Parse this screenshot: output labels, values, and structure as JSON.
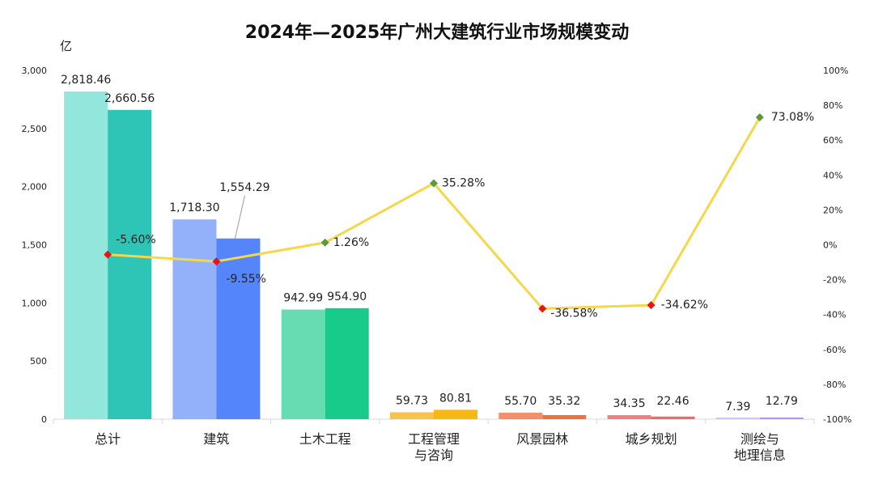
{
  "chart_data": {
    "type": "bar",
    "title": "2024年—2025年广州大建筑行业市场规模变动",
    "ylabel": "亿",
    "ylim": [
      0,
      3000
    ],
    "y2lim": [
      -100,
      100
    ],
    "yticks": [
      "0",
      "500",
      "1,000",
      "1,500",
      "2,000",
      "2,500",
      "3,000"
    ],
    "y2ticks": [
      "-100%",
      "-80%",
      "-60%",
      "-40%",
      "-20%",
      "0%",
      "20%",
      "40%",
      "60%",
      "80%",
      "100%"
    ],
    "categories": [
      [
        "总计"
      ],
      [
        "建筑"
      ],
      [
        "土木工程"
      ],
      [
        "工程管理",
        "与咨询"
      ],
      [
        "风景园林"
      ],
      [
        "城乡规划"
      ],
      [
        "测绘与",
        "地理信息"
      ]
    ],
    "series": [
      {
        "values": [
          2818.46,
          1718.3,
          942.99,
          59.73,
          55.7,
          34.35,
          7.39
        ],
        "labels": [
          "2,818.46",
          "1,718.30",
          "942.99",
          "59.73",
          "55.70",
          "34.35",
          "7.39"
        ],
        "colors": [
          "#93e6dc",
          "#93b1fb",
          "#67dcb2",
          "#f9c24f",
          "#f48f6a",
          "#f37e7e",
          "#d2c5f6"
        ]
      },
      {
        "values": [
          2660.56,
          1554.29,
          954.9,
          80.81,
          35.32,
          22.46,
          12.79
        ],
        "labels": [
          "2,660.56",
          "1,554.29",
          "954.90",
          "80.81",
          "35.32",
          "22.46",
          "12.79"
        ],
        "colors": [
          "#2ec4b6",
          "#5585fb",
          "#19cb8a",
          "#f7b811",
          "#ee7240",
          "#ec6a6a",
          "#b592f0"
        ]
      }
    ],
    "growth": {
      "values": [
        -5.6,
        -9.55,
        1.26,
        35.28,
        -36.58,
        -34.62,
        73.08
      ],
      "labels": [
        "-5.60%",
        "-9.55%",
        "1.26%",
        "35.28%",
        "-36.58%",
        "-34.62%",
        "73.08%"
      ],
      "line_color": "#f5d84a",
      "positive_marker": "#5a9a3a",
      "negative_marker": "#ee1111"
    }
  }
}
